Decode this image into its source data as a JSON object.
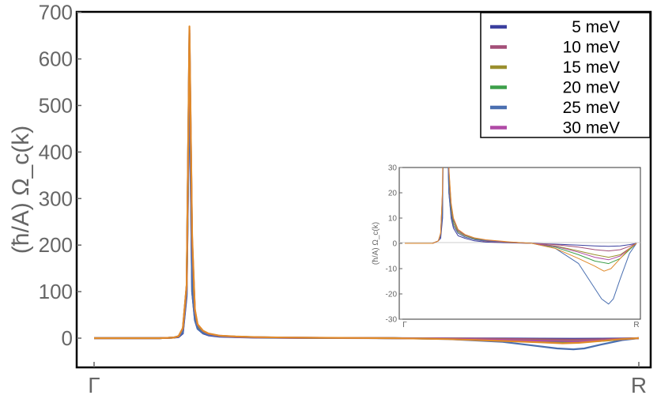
{
  "chart_data": {
    "type": "line",
    "ylabel": "(ħ/A) Ω_c(k)",
    "x_tick_labels": [
      "Γ",
      "R"
    ],
    "xlim": [
      0,
      1
    ],
    "ylim": [
      -60,
      705
    ],
    "yticks": [
      0,
      100,
      200,
      300,
      400,
      500,
      600,
      700
    ],
    "grid": false,
    "legend_placement": "top-right",
    "series": [
      {
        "name": "5 meV",
        "color": "#3b3f9e",
        "x": [
          0,
          0.12,
          0.145,
          0.155,
          0.163,
          0.17,
          0.175,
          0.18,
          0.185,
          0.19,
          0.2,
          0.21,
          0.23,
          0.26,
          0.3,
          0.35,
          0.45,
          0.55,
          0.65,
          0.75,
          0.82,
          0.88,
          0.93,
          0.97,
          1.0
        ],
        "y": [
          0,
          0,
          1,
          2,
          10,
          90,
          550,
          100,
          40,
          20,
          10,
          6,
          3,
          2,
          1,
          0.5,
          0.2,
          0,
          -0.3,
          -0.7,
          -1,
          -1.2,
          -1,
          -0.5,
          0
        ]
      },
      {
        "name": "10 meV",
        "color": "#a34f78",
        "x": [
          0,
          0.12,
          0.145,
          0.155,
          0.163,
          0.17,
          0.175,
          0.18,
          0.185,
          0.19,
          0.2,
          0.21,
          0.23,
          0.26,
          0.3,
          0.35,
          0.45,
          0.55,
          0.65,
          0.75,
          0.82,
          0.88,
          0.93,
          0.97,
          1.0
        ],
        "y": [
          0,
          0,
          1,
          3,
          14,
          105,
          600,
          160,
          50,
          25,
          12,
          7,
          4,
          2.5,
          1.5,
          0.8,
          0.3,
          0,
          -0.5,
          -1.5,
          -2.5,
          -3,
          -2.5,
          -1.2,
          0
        ]
      },
      {
        "name": "15 meV",
        "color": "#9a8f2e",
        "x": [
          0,
          0.12,
          0.145,
          0.155,
          0.163,
          0.17,
          0.175,
          0.18,
          0.185,
          0.19,
          0.2,
          0.21,
          0.23,
          0.26,
          0.3,
          0.35,
          0.45,
          0.55,
          0.65,
          0.75,
          0.82,
          0.88,
          0.93,
          0.97,
          1.0
        ],
        "y": [
          0,
          0,
          1,
          4,
          18,
          110,
          640,
          190,
          55,
          27,
          14,
          8,
          4.5,
          3,
          1.8,
          1,
          0.4,
          0,
          -1,
          -3,
          -4.5,
          -5.5,
          -4.5,
          -2,
          0
        ]
      },
      {
        "name": "20 meV",
        "color": "#3d9f4a",
        "x": [
          0,
          0.12,
          0.145,
          0.155,
          0.163,
          0.17,
          0.175,
          0.18,
          0.185,
          0.19,
          0.2,
          0.21,
          0.23,
          0.26,
          0.3,
          0.35,
          0.45,
          0.55,
          0.65,
          0.75,
          0.82,
          0.88,
          0.93,
          0.97,
          1.0
        ],
        "y": [
          0,
          0,
          1,
          4,
          20,
          112,
          655,
          205,
          58,
          28,
          15,
          9,
          5,
          3.2,
          2,
          1.2,
          0.5,
          0,
          -1.5,
          -4.5,
          -7,
          -8,
          -6,
          -2.5,
          0
        ]
      },
      {
        "name": "25 meV",
        "color": "#4a6fb0",
        "x": [
          0,
          0.12,
          0.145,
          0.155,
          0.163,
          0.17,
          0.175,
          0.18,
          0.185,
          0.19,
          0.2,
          0.21,
          0.23,
          0.26,
          0.3,
          0.35,
          0.45,
          0.55,
          0.65,
          0.75,
          0.8,
          0.85,
          0.88,
          0.9,
          0.93,
          0.97,
          1.0
        ],
        "y": [
          0,
          0,
          1,
          3,
          12,
          95,
          560,
          100,
          38,
          20,
          11,
          7,
          4,
          2.5,
          1.5,
          1,
          0.5,
          0,
          -2,
          -8,
          -15,
          -22,
          -24,
          -22,
          -14,
          -4,
          0
        ]
      },
      {
        "name": "30 meV",
        "color": "#b04aa6",
        "x": [
          0,
          0.12,
          0.145,
          0.155,
          0.163,
          0.17,
          0.175,
          0.18,
          0.185,
          0.19,
          0.2,
          0.21,
          0.23,
          0.26,
          0.3,
          0.35,
          0.45,
          0.55,
          0.65,
          0.75,
          0.82,
          0.88,
          0.93,
          0.97,
          1.0
        ],
        "y": [
          0,
          0,
          1,
          4,
          21,
          113,
          662,
          212,
          60,
          29,
          15.5,
          9.5,
          5.2,
          3.3,
          2.1,
          1.3,
          0.5,
          0,
          -1.2,
          -3.5,
          -5.5,
          -6.5,
          -5,
          -2,
          0
        ]
      },
      {
        "name": "",
        "color": "#e08a2a",
        "x": [
          0,
          0.12,
          0.145,
          0.155,
          0.163,
          0.17,
          0.175,
          0.18,
          0.185,
          0.19,
          0.2,
          0.21,
          0.23,
          0.26,
          0.3,
          0.35,
          0.45,
          0.55,
          0.65,
          0.75,
          0.82,
          0.86,
          0.89,
          0.93,
          0.97,
          1.0
        ],
        "y": [
          0,
          0,
          1,
          4,
          22,
          115,
          670,
          220,
          62,
          30,
          16,
          10,
          5.5,
          3.5,
          2.2,
          1.4,
          0.6,
          0,
          -2,
          -6,
          -9,
          -11,
          -10,
          -6,
          -2,
          0
        ]
      }
    ],
    "inset": {
      "ylabel": "(ħ/A) Ω_c(k)",
      "x_tick_labels": [
        "Γ",
        "R"
      ],
      "ylim": [
        -30,
        30
      ],
      "yticks": [
        30,
        20,
        10,
        0,
        -10,
        -20,
        -30
      ],
      "xlim": [
        0,
        1
      ]
    }
  }
}
